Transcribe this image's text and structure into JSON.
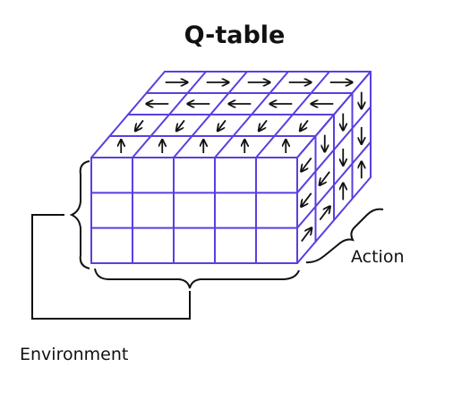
{
  "title": "Q-table",
  "labels": {
    "action": "Action",
    "environment": "Environment"
  },
  "colors": {
    "grid": "#5a3fe0",
    "ink": "#111111"
  },
  "grid": {
    "front_rows": 3,
    "front_cols": 5,
    "depth_layers": 4
  },
  "top_arrows": [
    [
      "right",
      "right",
      "right",
      "right",
      "right"
    ],
    [
      "left",
      "left",
      "left",
      "left",
      "left"
    ],
    [
      "down-left",
      "down-left",
      "down-left",
      "down-left",
      "down-left"
    ],
    [
      "up",
      "up",
      "up",
      "up",
      "up"
    ]
  ],
  "side_arrows": [
    [
      "down-left",
      "down",
      "down",
      "down"
    ],
    [
      "down-left",
      "down-left",
      "down",
      "down"
    ],
    [
      "up-right",
      "up-right",
      "up",
      "up"
    ]
  ]
}
